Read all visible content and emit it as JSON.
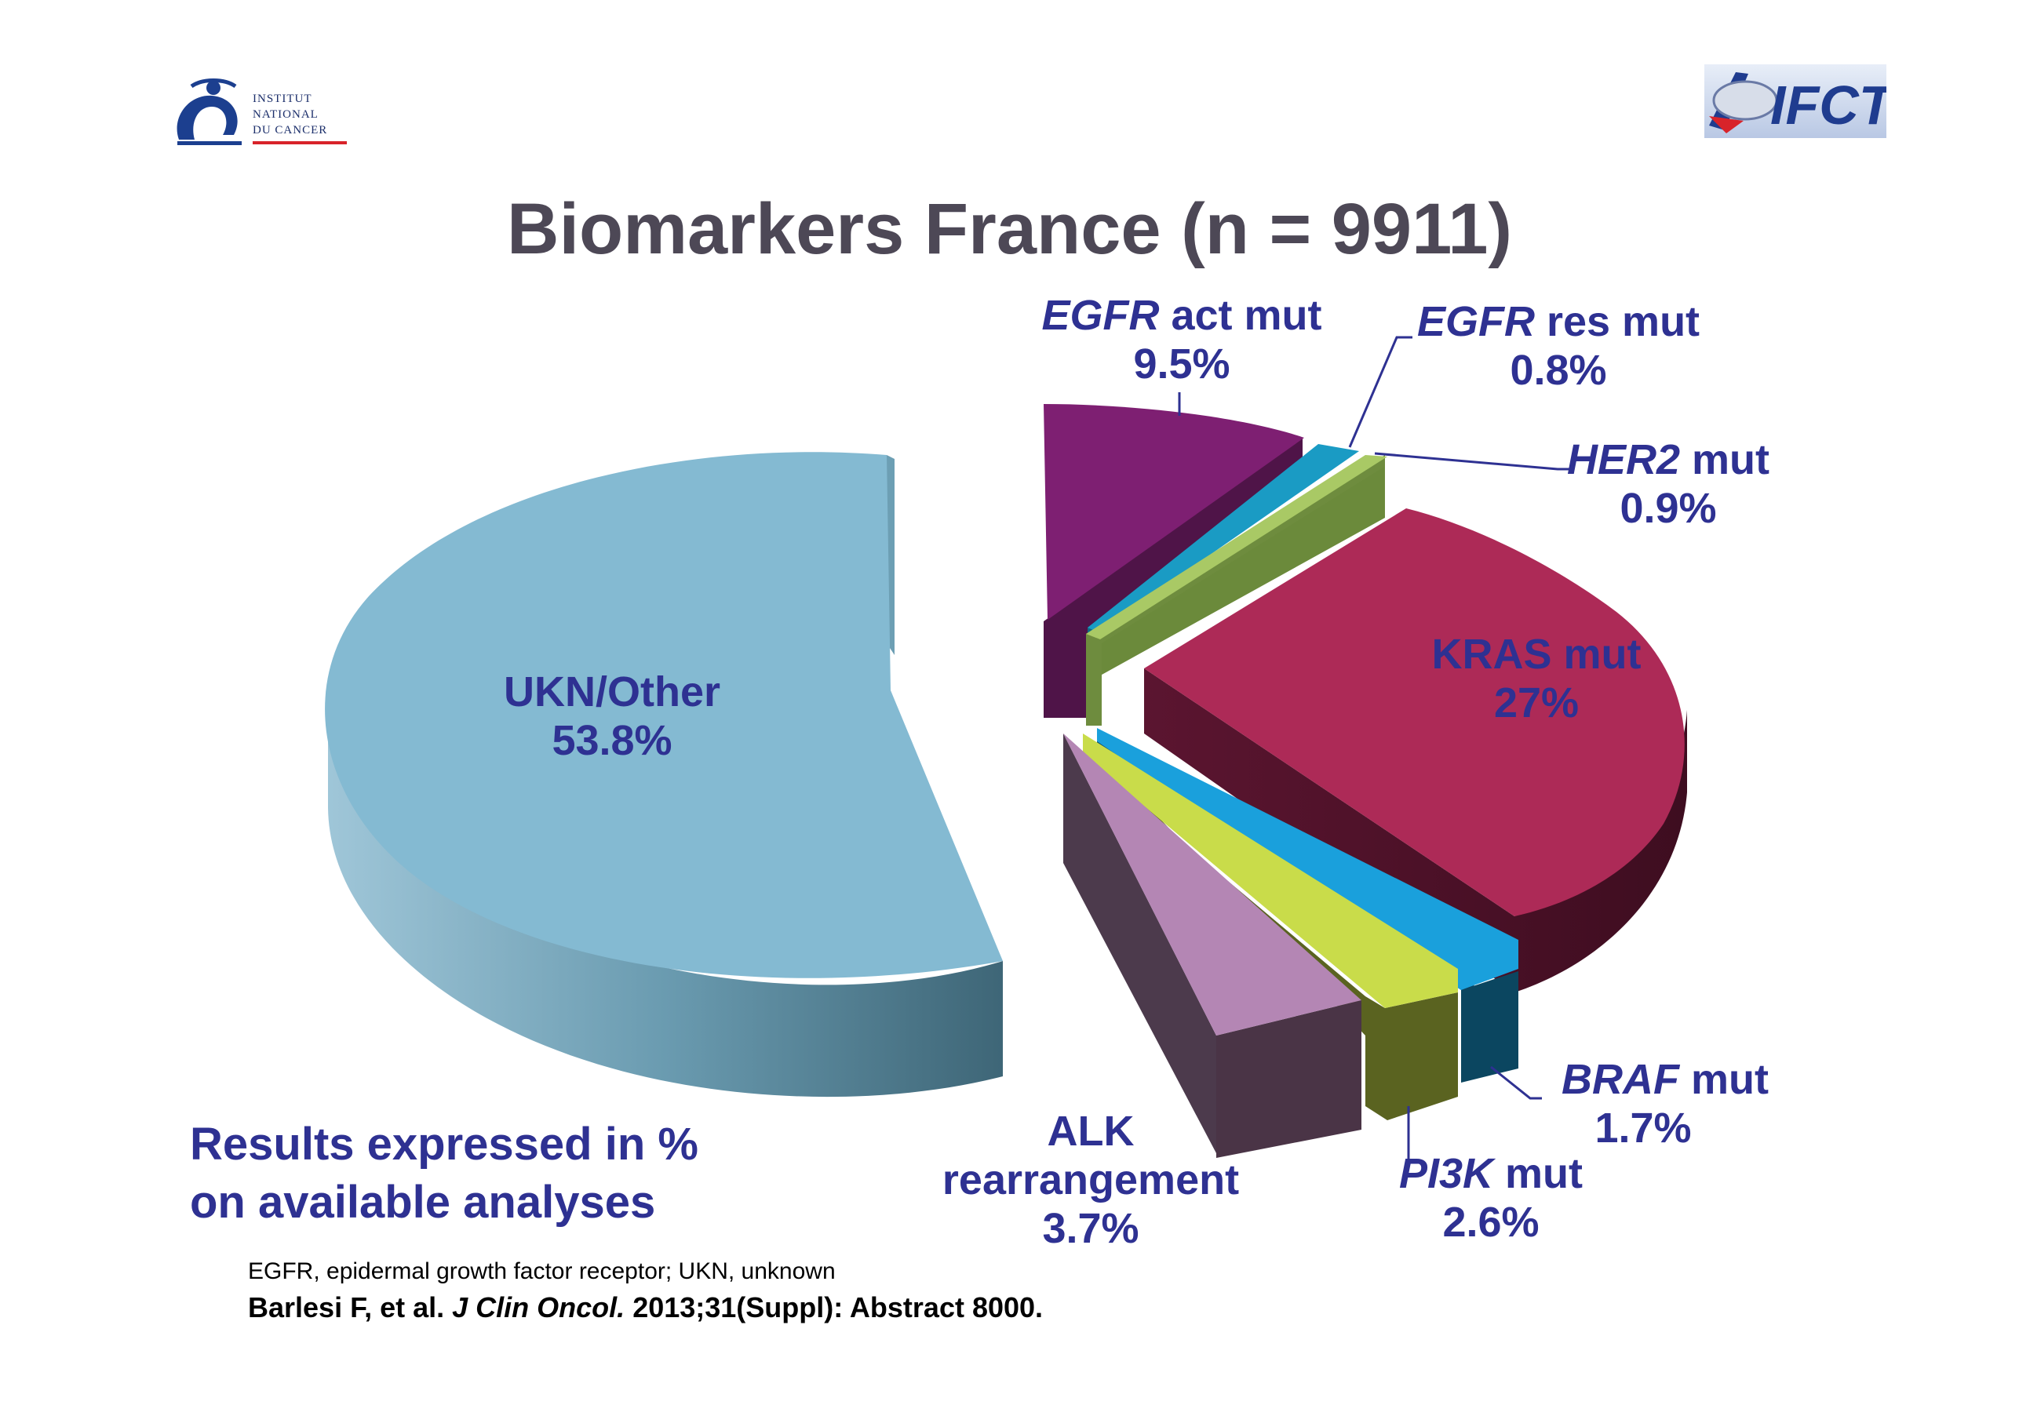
{
  "title": "Biomarkers France (n = 9911)",
  "logos": {
    "left_line1": "INSTITUT",
    "left_line2": "NATIONAL",
    "left_line3": "DU CANCER",
    "right": "IFCT"
  },
  "note": {
    "line1": "Results expressed in %",
    "line2": "on available analyses"
  },
  "footnote": "EGFR, epidermal growth factor receptor; UKN, unknown",
  "citation": {
    "authors": "Barlesi F, et al.",
    "journal": "J Clin Oncol.",
    "details": "2013;31(Suppl): Abstract 8000."
  },
  "chart_data": {
    "type": "pie",
    "title": "Biomarkers France (n = 9911)",
    "slices": [
      {
        "name": "EGFR act mut",
        "value": 9.5,
        "label": "9.5%",
        "color": "#7e1f72"
      },
      {
        "name": "EGFR res mut",
        "value": 0.8,
        "label": "0.8%",
        "color": "#1a9bc4"
      },
      {
        "name": "HER2 mut",
        "value": 0.9,
        "label": "0.9%",
        "color": "#a9c965"
      },
      {
        "name": "KRAS mut",
        "value": 27,
        "label": "27%",
        "color": "#ad2a57"
      },
      {
        "name": "BRAF mut",
        "value": 1.7,
        "label": "1.7%",
        "color": "#1aa0dc"
      },
      {
        "name": "PI3K mut",
        "value": 2.6,
        "label": "2.6%",
        "color": "#c9dc4a"
      },
      {
        "name": "ALK rearrangement",
        "value": 3.7,
        "label": "3.7%",
        "color": "#b486b4"
      },
      {
        "name": "UKN/Other",
        "value": 53.8,
        "label": "53.8%",
        "color": "#84bad2"
      }
    ]
  }
}
